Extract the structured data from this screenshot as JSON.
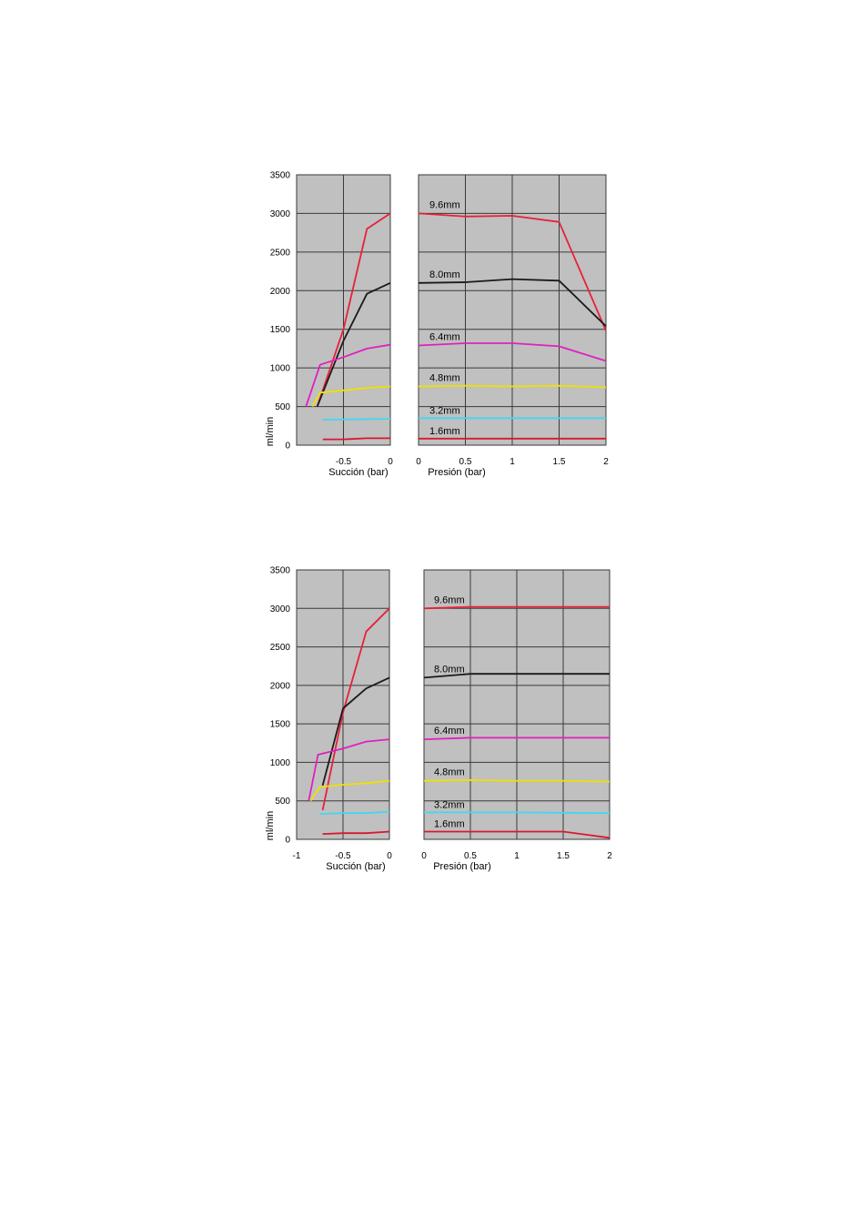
{
  "chart_data": [
    {
      "type": "line",
      "ylabel": "ml/min",
      "ylim": [
        0,
        3500
      ],
      "yticks": [
        "0",
        "500",
        "1000",
        "1500",
        "2000",
        "2500",
        "3000",
        "3500"
      ],
      "grid": true,
      "left_panel": {
        "xlabel": "Succión (bar)",
        "xlim": [
          -1,
          0
        ],
        "xticks": [
          "-0.5",
          "0"
        ]
      },
      "right_panel": {
        "xlabel": "Presión  (bar)",
        "xlim": [
          0,
          2
        ],
        "xticks": [
          "0",
          "0.5",
          "1",
          "1.5",
          "2"
        ]
      },
      "series": [
        {
          "name": "9.6mm",
          "color": "#e8203a",
          "suction": [
            [
              -0.78,
              500
            ],
            [
              -0.5,
              1500
            ],
            [
              -0.25,
              2800
            ],
            [
              0,
              3000
            ]
          ],
          "pressure": [
            [
              0,
              3000
            ],
            [
              0.5,
              2960
            ],
            [
              1,
              2970
            ],
            [
              1.5,
              2890
            ],
            [
              2,
              1480
            ]
          ]
        },
        {
          "name": "8.0mm",
          "color": "#1a1a1a",
          "suction": [
            [
              -0.78,
              500
            ],
            [
              -0.5,
              1350
            ],
            [
              -0.25,
              1960
            ],
            [
              0,
              2100
            ]
          ],
          "pressure": [
            [
              0,
              2100
            ],
            [
              0.5,
              2110
            ],
            [
              1,
              2150
            ],
            [
              1.5,
              2130
            ],
            [
              2,
              1540
            ]
          ]
        },
        {
          "name": "6.4mm",
          "color": "#e020c0",
          "suction": [
            [
              -0.9,
              500
            ],
            [
              -0.75,
              1040
            ],
            [
              -0.5,
              1140
            ],
            [
              -0.25,
              1250
            ],
            [
              0,
              1300
            ]
          ],
          "pressure": [
            [
              0,
              1290
            ],
            [
              0.5,
              1320
            ],
            [
              1,
              1320
            ],
            [
              1.5,
              1280
            ],
            [
              2,
              1090
            ]
          ]
        },
        {
          "name": "4.8mm",
          "color": "#f0e000",
          "suction": [
            [
              -0.83,
              500
            ],
            [
              -0.75,
              680
            ],
            [
              -0.5,
              710
            ],
            [
              -0.25,
              740
            ],
            [
              0,
              760
            ]
          ],
          "pressure": [
            [
              0,
              760
            ],
            [
              0.5,
              770
            ],
            [
              1,
              760
            ],
            [
              1.5,
              770
            ],
            [
              2,
              750
            ]
          ]
        },
        {
          "name": "3.2mm",
          "color": "#40d8f0",
          "suction": [
            [
              -0.72,
              330
            ],
            [
              0,
              340
            ]
          ],
          "pressure": [
            [
              0,
              350
            ],
            [
              1,
              350
            ],
            [
              2,
              350
            ]
          ]
        },
        {
          "name": "1.6mm",
          "color": "#d81830",
          "suction": [
            [
              -0.72,
              75
            ],
            [
              -0.5,
              75
            ],
            [
              -0.25,
              90
            ],
            [
              0,
              90
            ]
          ],
          "pressure": [
            [
              0,
              85
            ],
            [
              1,
              85
            ],
            [
              2,
              85
            ]
          ]
        }
      ]
    },
    {
      "type": "line",
      "ylabel": "ml/min",
      "ylim": [
        0,
        3500
      ],
      "yticks": [
        "0",
        "500",
        "1000",
        "1500",
        "2000",
        "2500",
        "3000",
        "3500"
      ],
      "grid": true,
      "left_panel": {
        "xlabel": "Succión  (bar)",
        "xlim": [
          -1,
          0
        ],
        "xticks": [
          "-1",
          "-0.5",
          "0"
        ]
      },
      "right_panel": {
        "xlabel": "Presión (bar)",
        "xlim": [
          0,
          2
        ],
        "xticks": [
          "0",
          "0.5",
          "1",
          "1.5",
          "2"
        ]
      },
      "series": [
        {
          "name": "9.6mm",
          "color": "#e8203a",
          "suction": [
            [
              -0.72,
              380
            ],
            [
              -0.5,
              1650
            ],
            [
              -0.25,
              2700
            ],
            [
              0,
              3000
            ]
          ],
          "pressure": [
            [
              0,
              3000
            ],
            [
              0.5,
              3020
            ],
            [
              1,
              3020
            ],
            [
              1.5,
              3020
            ],
            [
              2,
              3020
            ]
          ]
        },
        {
          "name": "8.0mm",
          "color": "#1a1a1a",
          "suction": [
            [
              -0.72,
              700
            ],
            [
              -0.5,
              1700
            ],
            [
              -0.25,
              1960
            ],
            [
              0,
              2100
            ]
          ],
          "pressure": [
            [
              0,
              2100
            ],
            [
              0.5,
              2150
            ],
            [
              1,
              2150
            ],
            [
              1.5,
              2150
            ],
            [
              2,
              2150
            ]
          ]
        },
        {
          "name": "6.4mm",
          "color": "#e020c0",
          "suction": [
            [
              -0.87,
              500
            ],
            [
              -0.77,
              1100
            ],
            [
              -0.5,
              1180
            ],
            [
              -0.25,
              1270
            ],
            [
              0,
              1300
            ]
          ],
          "pressure": [
            [
              0,
              1300
            ],
            [
              0.5,
              1320
            ],
            [
              1,
              1320
            ],
            [
              1.5,
              1320
            ],
            [
              2,
              1320
            ]
          ]
        },
        {
          "name": "4.8mm",
          "color": "#f0e000",
          "suction": [
            [
              -0.85,
              500
            ],
            [
              -0.75,
              680
            ],
            [
              -0.5,
              710
            ],
            [
              -0.25,
              730
            ],
            [
              0,
              760
            ]
          ],
          "pressure": [
            [
              0,
              760
            ],
            [
              0.5,
              770
            ],
            [
              1,
              760
            ],
            [
              1.5,
              760
            ],
            [
              2,
              750
            ]
          ]
        },
        {
          "name": "3.2mm",
          "color": "#40d8f0",
          "suction": [
            [
              -0.75,
              330
            ],
            [
              -0.5,
              340
            ],
            [
              -0.25,
              340
            ],
            [
              0,
              360
            ]
          ],
          "pressure": [
            [
              0,
              350
            ],
            [
              1,
              350
            ],
            [
              2,
              340
            ]
          ]
        },
        {
          "name": "1.6mm",
          "color": "#d81830",
          "suction": [
            [
              -0.72,
              70
            ],
            [
              -0.5,
              80
            ],
            [
              -0.25,
              80
            ],
            [
              0,
              100
            ]
          ],
          "pressure": [
            [
              0,
              100
            ],
            [
              1,
              100
            ],
            [
              1.5,
              100
            ],
            [
              2,
              20
            ]
          ]
        }
      ]
    }
  ]
}
